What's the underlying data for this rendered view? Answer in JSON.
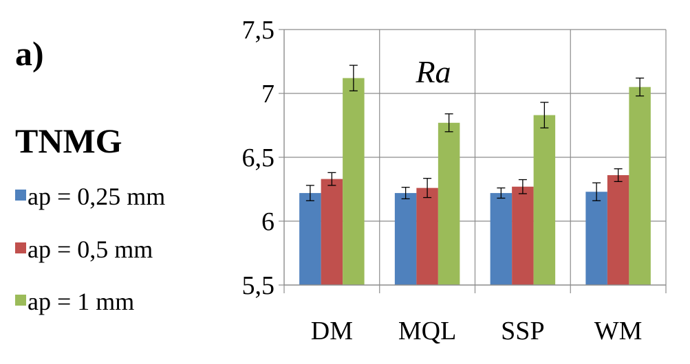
{
  "panel_label": "a)",
  "insert_label": "TNMG",
  "colors": {
    "series_1": "#4F81BD",
    "series_2": "#C0504D",
    "series_3": "#9BBB59"
  },
  "chart_data": {
    "type": "bar",
    "title": "Ra",
    "categories": [
      "DM",
      "MQL",
      "SSP",
      "WM"
    ],
    "series": [
      {
        "name": "ap = 0,25 mm",
        "values": [
          6.22,
          6.22,
          6.22,
          6.23
        ],
        "errors": [
          0.06,
          0.045,
          0.04,
          0.07
        ]
      },
      {
        "name": "ap = 0,5 mm",
        "values": [
          6.33,
          6.26,
          6.27,
          6.36
        ],
        "errors": [
          0.05,
          0.075,
          0.055,
          0.05
        ]
      },
      {
        "name": "ap = 1 mm",
        "values": [
          7.12,
          6.77,
          6.83,
          7.05
        ],
        "errors": [
          0.1,
          0.07,
          0.1,
          0.07
        ]
      }
    ],
    "ylim": [
      5.5,
      7.5
    ],
    "yticks": [
      "5,5",
      "6",
      "6,5",
      "7",
      "7,5"
    ],
    "ytick_values": [
      5.5,
      6.0,
      6.5,
      7.0,
      7.5
    ],
    "grid": true,
    "legend_position": "left"
  }
}
